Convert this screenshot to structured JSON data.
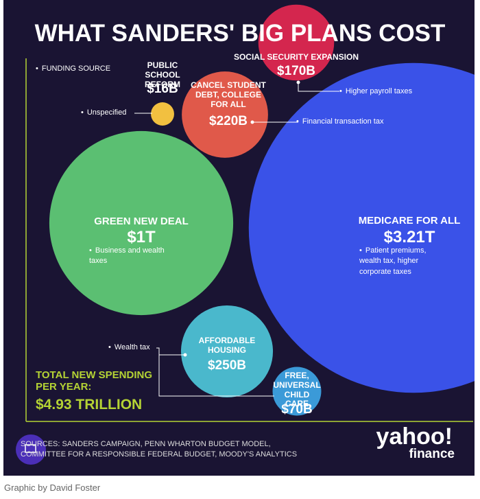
{
  "chart_data": {
    "type": "bubble",
    "title": "WHAT SANDERS' BIG PLANS COST",
    "legend_label": "FUNDING SOURCE",
    "categories": [
      "MEDICARE FOR ALL",
      "GREEN NEW DEAL",
      "AFFORDABLE HOUSING",
      "CANCEL STUDENT DEBT, COLLEGE FOR ALL",
      "SOCIAL SECURITY EXPANSION",
      "FREE, UNIVERSAL CHILD CARE",
      "PUBLIC SCHOOL REFORM"
    ],
    "values": [
      3210,
      1000,
      250,
      220,
      170,
      70,
      16
    ],
    "value_labels": [
      "$3.21T",
      "$1T",
      "$250B",
      "$220B",
      "$170B",
      "$70B",
      "$16B"
    ],
    "colors": [
      "#3a52e8",
      "#5bbf72",
      "#4ab8cc",
      "#e0594a",
      "#d4264e",
      "#3b9ad8",
      "#f2c040"
    ],
    "funding": [
      "Patient premiums, wealth tax, higher corporate taxes",
      "Business and wealth taxes",
      "Wealth tax",
      "Financial transaction tax",
      "Higher payroll taxes",
      null,
      "Unspecified"
    ],
    "total": {
      "label": "TOTAL NEW SPENDING PER YEAR:",
      "value": 4930,
      "value_label": "$4.93 TRILLION"
    },
    "sources": "SOURCES: SANDERS CAMPAIGN, PENN WHARTON BUDGET MODEL, COMMITTEE FOR A RESPONSIBLE FEDERAL BUDGET, MOODY'S ANALYTICS",
    "logo": "yahoo!",
    "logo_sub": "finance",
    "caption": "Graphic by David Foster"
  }
}
